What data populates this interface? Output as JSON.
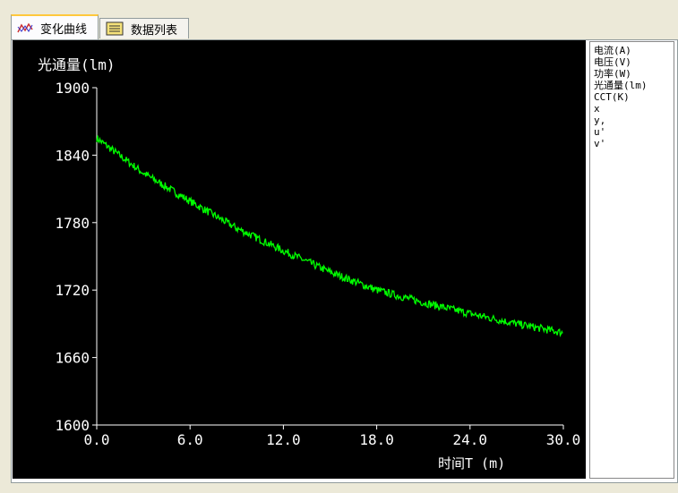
{
  "tabs": [
    {
      "label": "变化曲线",
      "icon": "chart-icon",
      "active": true
    },
    {
      "label": "数据列表",
      "icon": "list-icon",
      "active": false
    }
  ],
  "legend": {
    "items": [
      "电流(A)",
      "电压(V)",
      "功率(W)",
      "光通量(lm)",
      "CCT(K)",
      "x",
      "y,",
      "u'",
      "v'"
    ]
  },
  "chart_data": {
    "type": "line",
    "ylabel": "光通量(lm)",
    "xlabel": "时间T  (m)",
    "xlim": [
      0,
      30
    ],
    "ylim": [
      1600,
      1900
    ],
    "xticks": [
      "0.0",
      "6.0",
      "12.0",
      "18.0",
      "24.0",
      "30.0"
    ],
    "yticks": [
      "1600",
      "1660",
      "1720",
      "1780",
      "1840",
      "1900"
    ],
    "grid": false,
    "line_color": "#00ff00",
    "series": [
      {
        "x": [
          0,
          3,
          6,
          9,
          12,
          15,
          18,
          21,
          24,
          27,
          30
        ],
        "y": [
          1855,
          1824,
          1799,
          1775,
          1755,
          1736,
          1720,
          1709,
          1699,
          1690,
          1682
        ]
      }
    ]
  }
}
